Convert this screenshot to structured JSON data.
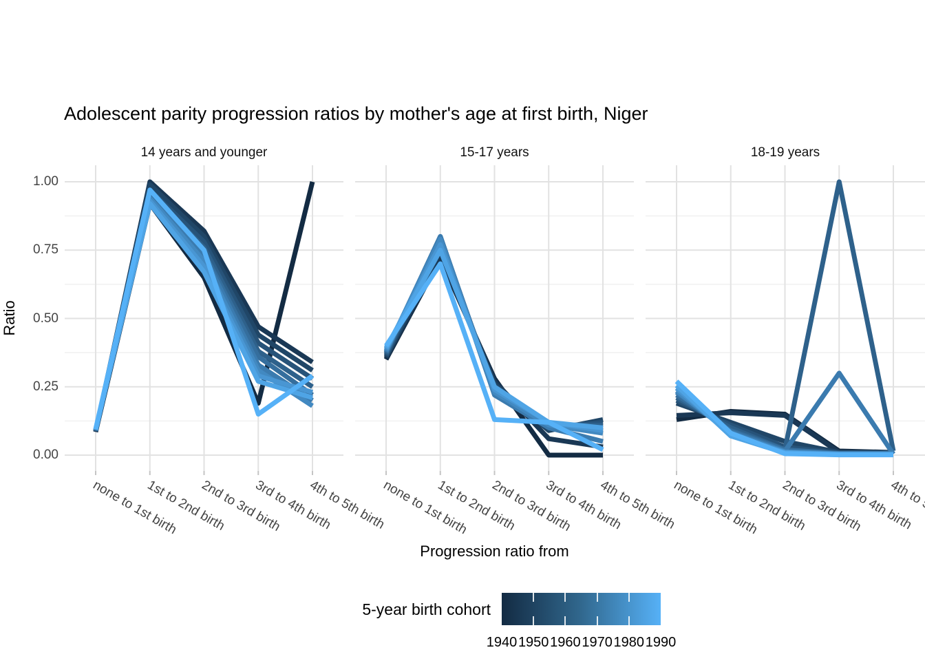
{
  "title": "Adolescent parity progression ratios by mother's age at first birth,  Niger",
  "axes": {
    "x_title": "Progression ratio from",
    "y_title": "Ratio",
    "y_tick_labels": [
      "0.00",
      "0.25",
      "0.50",
      "0.75",
      "1.00"
    ]
  },
  "legend": {
    "title": "5-year birth cohort",
    "tick_labels": [
      "1940",
      "1950",
      "1960",
      "1970",
      "1980",
      "1990"
    ],
    "gradient_low": "#132B43",
    "gradient_mid": "#31688E",
    "gradient_high": "#56B1F7"
  },
  "colors": {
    "grid_major": "#e2e2e2",
    "grid_minor": "#f0f0f0",
    "axis_tick": "#c4c4c4",
    "tick_text": "#444444"
  },
  "chart_data": {
    "type": "line",
    "categories": [
      "none to 1st birth",
      "1st to 2nd birth",
      "2nd to 3rd birth",
      "3rd to 4th birth",
      "4th to 5th birth"
    ],
    "xlabel": "Progression ratio from",
    "ylabel": "Ratio",
    "ylim": [
      0,
      1
    ],
    "y_ticks": [
      0,
      0.25,
      0.5,
      0.75,
      1
    ],
    "y_minor_ticks": [
      0.125,
      0.375,
      0.625,
      0.875
    ],
    "grid": true,
    "legend_position": "bottom",
    "color_scale": {
      "low": "#132B43",
      "high": "#56B1F7",
      "domain": [
        1940,
        1990
      ],
      "label": "5-year birth cohort"
    },
    "facets": [
      {
        "label": "14 years and younger",
        "series": [
          {
            "cohort": 1940,
            "values": [
              0.085,
              0.92,
              0.65,
              0.19,
              1.0
            ]
          },
          {
            "cohort": 1945,
            "values": [
              0.086,
              1.0,
              0.82,
              0.47,
              0.34
            ]
          },
          {
            "cohort": 1950,
            "values": [
              0.087,
              0.99,
              0.8,
              0.44,
              0.31
            ]
          },
          {
            "cohort": 1955,
            "values": [
              0.088,
              0.97,
              0.78,
              0.41,
              0.28
            ]
          },
          {
            "cohort": 1960,
            "values": [
              0.089,
              0.96,
              0.76,
              0.38,
              0.25
            ]
          },
          {
            "cohort": 1965,
            "values": [
              0.09,
              0.95,
              0.74,
              0.36,
              0.22
            ]
          },
          {
            "cohort": 1970,
            "values": [
              0.091,
              0.94,
              0.73,
              0.33,
              0.2
            ]
          },
          {
            "cohort": 1975,
            "values": [
              0.092,
              0.94,
              0.71,
              0.31,
              0.18
            ]
          },
          {
            "cohort": 1980,
            "values": [
              0.093,
              0.93,
              0.69,
              0.29,
              0.23
            ]
          },
          {
            "cohort": 1985,
            "values": [
              0.094,
              0.92,
              0.67,
              0.27,
              0.21
            ]
          },
          {
            "cohort": 1990,
            "values": [
              0.095,
              0.97,
              0.75,
              0.15,
              0.29
            ]
          }
        ]
      },
      {
        "label": "15-17 years",
        "series": [
          {
            "cohort": 1940,
            "values": [
              0.35,
              0.72,
              0.28,
              0.0,
              0.0
            ]
          },
          {
            "cohort": 1945,
            "values": [
              0.355,
              0.73,
              0.27,
              0.06,
              0.03
            ]
          },
          {
            "cohort": 1950,
            "values": [
              0.36,
              0.75,
              0.26,
              0.09,
              0.13
            ]
          },
          {
            "cohort": 1955,
            "values": [
              0.365,
              0.77,
              0.25,
              0.1,
              0.12
            ]
          },
          {
            "cohort": 1960,
            "values": [
              0.37,
              0.79,
              0.24,
              0.11,
              0.11
            ]
          },
          {
            "cohort": 1965,
            "values": [
              0.375,
              0.8,
              0.23,
              0.11,
              0.1
            ]
          },
          {
            "cohort": 1970,
            "values": [
              0.378,
              0.8,
              0.22,
              0.1,
              0.05
            ]
          },
          {
            "cohort": 1975,
            "values": [
              0.382,
              0.79,
              0.23,
              0.11,
              0.08
            ]
          },
          {
            "cohort": 1980,
            "values": [
              0.388,
              0.77,
              0.24,
              0.12,
              0.09
            ]
          },
          {
            "cohort": 1985,
            "values": [
              0.393,
              0.75,
              0.25,
              0.12,
              0.1
            ]
          },
          {
            "cohort": 1990,
            "values": [
              0.4,
              0.7,
              0.13,
              0.12,
              0.02
            ]
          }
        ]
      },
      {
        "label": "18-19 years",
        "series": [
          {
            "cohort": 1940,
            "values": [
              0.13,
              0.16,
              0.15,
              0.015,
              0.01
            ]
          },
          {
            "cohort": 1945,
            "values": [
              0.145,
              0.155,
              0.145,
              0.01,
              0.008
            ]
          },
          {
            "cohort": 1950,
            "values": [
              0.19,
              0.12,
              0.05,
              0.01,
              0.01
            ]
          },
          {
            "cohort": 1955,
            "values": [
              0.2,
              0.11,
              0.03,
              0.008,
              0.008
            ]
          },
          {
            "cohort": 1960,
            "values": [
              0.21,
              0.1,
              0.02,
              1.0,
              0.015
            ]
          },
          {
            "cohort": 1965,
            "values": [
              0.22,
              0.09,
              0.02,
              0.006,
              0.006
            ]
          },
          {
            "cohort": 1970,
            "values": [
              0.23,
              0.085,
              0.015,
              0.3,
              0.004
            ]
          },
          {
            "cohort": 1975,
            "values": [
              0.235,
              0.08,
              0.012,
              0.005,
              0.005
            ]
          },
          {
            "cohort": 1980,
            "values": [
              0.245,
              0.075,
              0.01,
              0.003,
              0.003
            ]
          },
          {
            "cohort": 1985,
            "values": [
              0.255,
              0.07,
              0.008,
              0.002,
              0.002
            ]
          },
          {
            "cohort": 1990,
            "values": [
              0.27,
              0.08,
              0.005,
              0.001,
              0.001
            ]
          }
        ]
      }
    ]
  }
}
